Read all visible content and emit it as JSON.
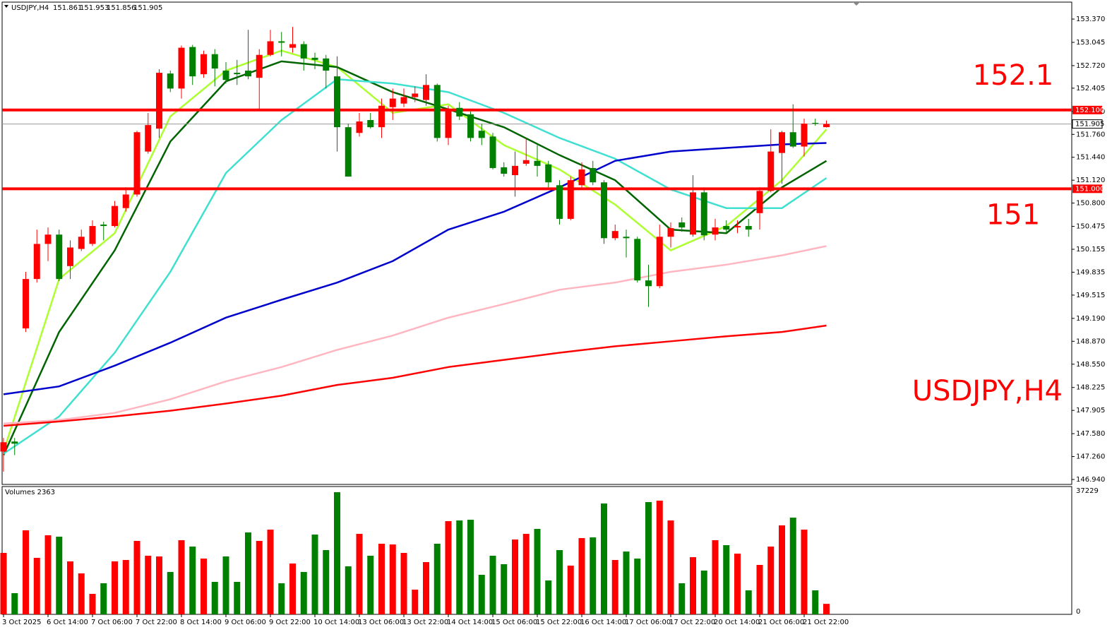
{
  "chart_data": [
    {
      "type": "candlestick",
      "title": "USDJPY,H4",
      "categories": [
        "3 Oct 2025",
        null,
        null,
        null,
        "6 Oct 14:00",
        null,
        null,
        null,
        "7 Oct 06:00",
        null,
        null,
        null,
        "7 Oct 22:00",
        null,
        null,
        null,
        "8 Oct 14:00",
        null,
        null,
        null,
        "9 Oct 06:00",
        null,
        null,
        null,
        "9 Oct 22:00",
        null,
        null,
        null,
        "10 Oct 14:00",
        null,
        null,
        null,
        "13 Oct 06:00",
        null,
        null,
        null,
        "13 Oct 22:00",
        null,
        null,
        null,
        "14 Oct 14:00",
        null,
        null,
        null,
        "15 Oct 06:00",
        null,
        null,
        null,
        "15 Oct 22:00",
        null,
        null,
        null,
        "16 Oct 14:00",
        null,
        null,
        null,
        "17 Oct 06:00",
        null,
        null,
        null,
        "17 Oct 22:00",
        null,
        null,
        null,
        "20 Oct 14:00",
        null,
        null,
        null,
        "21 Oct 06:00",
        null,
        null,
        null,
        "21 Oct 22:00",
        null,
        null
      ],
      "open": [
        147.33,
        147.47,
        149.05,
        149.74,
        150.23,
        150.36,
        149.92,
        150.16,
        150.23,
        150.5,
        150.48,
        150.73,
        150.92,
        151.52,
        151.84,
        152.61,
        152.4,
        152.98,
        152.6,
        152.88,
        152.65,
        152.62,
        152.65,
        152.55,
        152.87,
        153.06,
        152.97,
        153.02,
        152.83,
        152.82,
        152.57,
        151.86,
        151.78,
        151.96,
        151.86,
        152.14,
        152.19,
        152.28,
        152.24,
        152.45,
        151.71,
        152.13,
        152.04,
        151.81,
        151.73,
        151.3,
        151.19,
        151.35,
        151.39,
        151.34,
        151.05,
        150.58,
        151.05,
        151.29,
        151.09,
        150.31,
        150.33,
        150.3,
        149.72,
        149.64,
        150.33,
        150.53,
        150.36,
        150.95,
        150.36,
        150.48,
        150.46,
        150.48,
        150.66,
        150.97,
        151.5,
        151.79,
        151.59,
        151.92,
        151.861
      ],
      "high": [
        147.52,
        147.52,
        149.84,
        150.43,
        150.46,
        150.43,
        150.28,
        150.43,
        150.56,
        150.54,
        150.83,
        151.02,
        151.81,
        152.06,
        152.67,
        152.65,
        153.0,
        153.01,
        152.93,
        152.95,
        152.77,
        152.8,
        153.22,
        152.95,
        153.22,
        153.19,
        153.26,
        153.06,
        152.9,
        152.87,
        152.85,
        151.91,
        152.06,
        152.06,
        152.26,
        152.4,
        152.4,
        152.43,
        152.6,
        152.47,
        152.16,
        152.21,
        152.08,
        151.91,
        151.78,
        151.37,
        151.52,
        151.71,
        151.61,
        151.39,
        151.12,
        151.17,
        151.37,
        151.39,
        151.12,
        150.5,
        150.43,
        150.33,
        149.94,
        150.5,
        150.53,
        150.6,
        151.19,
        150.99,
        150.58,
        150.56,
        150.56,
        150.58,
        151.02,
        151.83,
        151.81,
        152.18,
        151.98,
        151.98,
        151.953
      ],
      "low": [
        147.05,
        147.28,
        149.0,
        149.69,
        149.99,
        149.71,
        149.74,
        150.13,
        150.2,
        150.28,
        150.46,
        150.68,
        150.89,
        151.49,
        151.71,
        152.35,
        152.26,
        152.45,
        152.55,
        152.43,
        152.47,
        152.45,
        152.53,
        152.11,
        152.85,
        152.85,
        152.9,
        152.65,
        152.67,
        152.4,
        151.52,
        151.17,
        151.73,
        151.84,
        151.71,
        151.96,
        152.14,
        152.21,
        152.16,
        151.66,
        151.61,
        151.96,
        151.66,
        151.61,
        151.27,
        151.17,
        150.89,
        151.32,
        151.17,
        151.02,
        150.5,
        150.56,
        151.02,
        151.05,
        150.23,
        150.28,
        150.04,
        149.69,
        149.35,
        149.61,
        150.18,
        150.4,
        150.33,
        150.28,
        150.28,
        150.38,
        150.38,
        150.33,
        150.43,
        150.95,
        151.07,
        151.57,
        151.45,
        151.88,
        151.856
      ],
      "close": [
        147.46,
        147.44,
        149.74,
        150.23,
        150.36,
        149.74,
        150.18,
        150.33,
        150.48,
        150.48,
        150.76,
        150.92,
        151.79,
        151.89,
        152.62,
        152.4,
        152.97,
        152.57,
        152.88,
        152.68,
        152.52,
        152.6,
        152.57,
        152.87,
        153.06,
        153.04,
        153.02,
        152.82,
        152.8,
        152.65,
        151.86,
        151.17,
        151.94,
        151.86,
        152.16,
        152.26,
        152.28,
        152.33,
        152.45,
        151.71,
        152.11,
        152.01,
        151.71,
        151.71,
        151.29,
        151.21,
        151.32,
        151.4,
        151.32,
        151.09,
        150.58,
        151.12,
        151.27,
        151.09,
        150.31,
        150.41,
        150.31,
        149.72,
        149.64,
        150.33,
        150.45,
        150.46,
        150.95,
        150.35,
        150.46,
        150.43,
        150.48,
        150.43,
        150.97,
        151.52,
        151.79,
        151.59,
        151.91,
        151.91,
        151.905
      ],
      "up_color": "#ff0000",
      "down_color": "#008000",
      "series": [
        {
          "color": "#adff2f",
          "x": [
            0,
            5,
            10,
            15,
            20,
            25,
            30,
            35,
            40,
            45,
            50,
            55,
            60,
            65,
            70,
            74
          ],
          "values": [
            147.33,
            149.74,
            150.38,
            152.01,
            152.65,
            152.93,
            152.7,
            152.06,
            152.18,
            151.61,
            151.27,
            150.78,
            150.14,
            150.48,
            151.12,
            151.83
          ]
        },
        {
          "color": "#006400",
          "x": [
            0,
            5,
            10,
            15,
            20,
            25,
            30,
            35,
            40,
            45,
            50,
            55,
            60,
            65,
            70,
            74
          ],
          "values": [
            147.28,
            149.0,
            150.14,
            151.66,
            152.5,
            152.78,
            152.7,
            152.35,
            152.11,
            151.86,
            151.47,
            151.12,
            150.43,
            150.38,
            151.02,
            151.39
          ]
        },
        {
          "color": "#40e0d0",
          "x": [
            0,
            5,
            10,
            15,
            20,
            25,
            30,
            35,
            40,
            45,
            50,
            55,
            60,
            65,
            70,
            74
          ],
          "values": [
            147.3,
            147.82,
            148.71,
            149.84,
            151.22,
            151.96,
            152.53,
            152.47,
            152.35,
            152.06,
            151.71,
            151.42,
            150.99,
            150.73,
            150.73,
            151.15
          ]
        },
        {
          "color": "#0000cd",
          "x": [
            0,
            5,
            10,
            15,
            20,
            25,
            30,
            35,
            40,
            45,
            50,
            55,
            60,
            65,
            70,
            74
          ],
          "values": [
            148.13,
            148.24,
            148.53,
            148.85,
            149.2,
            149.45,
            149.69,
            149.99,
            150.43,
            150.68,
            151.02,
            151.39,
            151.52,
            151.57,
            151.62,
            151.64
          ]
        },
        {
          "color": "#ffb6c1",
          "x": [
            0,
            5,
            10,
            15,
            20,
            25,
            30,
            35,
            40,
            45,
            50,
            55,
            60,
            65,
            70,
            74
          ],
          "values": [
            147.72,
            147.77,
            147.87,
            148.06,
            148.31,
            148.51,
            148.75,
            148.95,
            149.2,
            149.39,
            149.59,
            149.69,
            149.84,
            149.94,
            150.07,
            150.2
          ]
        },
        {
          "color": "#ff0000",
          "x": [
            0,
            5,
            10,
            15,
            20,
            25,
            30,
            35,
            40,
            45,
            50,
            55,
            60,
            65,
            70,
            74
          ],
          "values": [
            147.69,
            147.75,
            147.82,
            147.9,
            148.0,
            148.11,
            148.26,
            148.36,
            148.51,
            148.61,
            148.71,
            148.8,
            148.87,
            148.94,
            149.0,
            149.09
          ]
        }
      ],
      "levels": [
        {
          "value": 152.1,
          "label": "152.100",
          "annotation": "152.1",
          "color": "#ff0000"
        },
        {
          "value": 151,
          "label": "151.000",
          "annotation": "151",
          "color": "#ff0000"
        }
      ],
      "last_price": 151.905,
      "ylim": [
        146.871,
        153.607
      ],
      "yticks": [
        {
          "value": 153.37,
          "label": "153.370"
        },
        153.045,
        {
          "value": 152.72,
          "label": "152.720"
        },
        152.405,
        {
          "value": 152.08,
          "label": "152.080"
        },
        {
          "value": 151.76,
          "label": "151.760"
        },
        {
          "value": 151.44,
          "label": "151.440"
        },
        {
          "value": 151.12,
          "label": "151.120"
        },
        {
          "value": 150.8,
          "label": "150.800"
        },
        150.475,
        150.155,
        149.835,
        149.515,
        {
          "value": 149.19,
          "label": "149.190"
        },
        {
          "value": 148.87,
          "label": "148.870"
        },
        {
          "value": 148.55,
          "label": "148.550"
        },
        148.225,
        147.905,
        {
          "value": 147.58,
          "label": "147.580"
        },
        {
          "value": 147.26,
          "label": "147.260"
        },
        {
          "value": 146.94,
          "label": "146.940"
        }
      ]
    },
    {
      "type": "bar",
      "title": "Volumes 2363",
      "values": [
        18070,
        5660,
        25040,
        16550,
        23510,
        23080,
        15460,
        11760,
        5440,
        8710,
        15460,
        15890,
        21770,
        17200,
        16980,
        12190,
        21990,
        20030,
        16330,
        9140,
        16980,
        9140,
        24380,
        21770,
        25250,
        8710,
        14800,
        12190,
        23730,
        18940,
        36790,
        13930,
        23950,
        17200,
        20900,
        20680,
        18070,
        6750,
        15240,
        20900,
        27870,
        28080,
        28300,
        11320,
        17200,
        14590,
        22210,
        23950,
        25470,
        9580,
        18940,
        14150,
        22640,
        22860,
        33310,
        15890,
        18500,
        16330,
        33740,
        34180,
        28080,
        8710,
        16760,
        12630,
        21990,
        20460,
        17850,
        6530,
        14370,
        20030,
        26560,
        28950,
        25250,
        6530,
        2363
      ],
      "ylim": [
        0,
        37229
      ],
      "yticks": [
        37229,
        0
      ]
    }
  ]
}
